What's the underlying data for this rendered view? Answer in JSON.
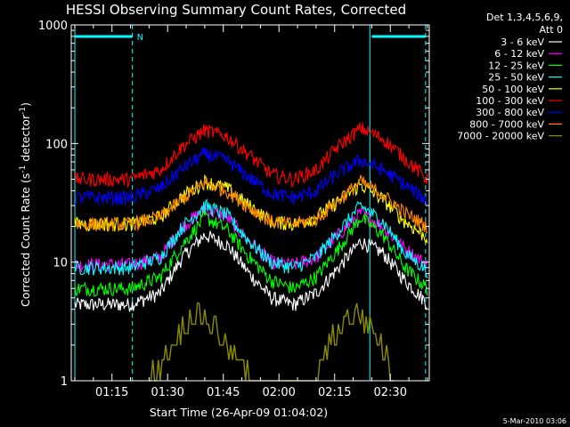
{
  "chart_data": {
    "type": "line",
    "title": "HESSI Observing Summary Count Rates, Corrected",
    "xlabel": "Start Time (26-Apr-09 01:04:02)",
    "ylabel": "Corrected Count Rate (s",
    "ylabel_sup1": "-1",
    "ylabel_mid": " detector",
    "ylabel_sup2": "-1",
    "ylabel_end": ")",
    "y_scale": "log",
    "ylim": [
      1,
      1000
    ],
    "xlim": [
      "01:04:02",
      "02:40:30"
    ],
    "x_tick_labels": [
      "01:15",
      "01:30",
      "01:45",
      "02:00",
      "02:15",
      "02:30"
    ],
    "x_tick_minutes": [
      75,
      90,
      105,
      120,
      135,
      150
    ],
    "x_range_minutes": [
      64.03,
      160.5
    ],
    "y_tick_labels": [
      "1",
      "10",
      "100",
      "1000"
    ],
    "y_tick_values": [
      1,
      10,
      100,
      1000
    ],
    "legend_header": [
      "Det 1,3,4,5,6,9,",
      "Att 0"
    ],
    "legend_placement": "right",
    "night_marker_label": "N",
    "timestamp": "5-Mar-2010 03:06",
    "orbit_markers_minutes": [
      65,
      80.5,
      144.5,
      159.5
    ],
    "night_intervals_minutes": [
      [
        65,
        80.5
      ],
      [
        145,
        159.5
      ]
    ],
    "series": [
      {
        "name": "3 - 6 keV",
        "color": "#ffffff",
        "x": [
          65,
          80,
          88,
          94,
          100,
          106,
          112,
          118,
          124,
          130,
          136,
          142,
          148,
          154,
          160
        ],
        "y": [
          4.4,
          4.4,
          5.5,
          11,
          17,
          14,
          8,
          5,
          4.4,
          5.5,
          9,
          15,
          12,
          7,
          4.5
        ]
      },
      {
        "name": "6 - 12 keV",
        "color": "#ff00ff",
        "x": [
          65,
          80,
          88,
          94,
          100,
          106,
          112,
          118,
          124,
          130,
          136,
          142,
          148,
          154,
          160
        ],
        "y": [
          9.5,
          9.5,
          11,
          20,
          28,
          24,
          15,
          10,
          9.5,
          11,
          17,
          26,
          20,
          13,
          9.5
        ]
      },
      {
        "name": "12 - 25 keV",
        "color": "#00ff00",
        "x": [
          65,
          80,
          88,
          94,
          100,
          106,
          112,
          118,
          124,
          130,
          136,
          142,
          148,
          154,
          160
        ],
        "y": [
          6,
          6,
          7.5,
          14,
          24,
          19,
          11,
          7,
          6,
          7.5,
          13,
          24,
          17,
          9,
          6
        ]
      },
      {
        "name": "25 - 50 keV",
        "color": "#00ffff",
        "x": [
          65,
          80,
          88,
          94,
          100,
          106,
          112,
          118,
          124,
          130,
          136,
          142,
          148,
          154,
          160
        ],
        "y": [
          9,
          9,
          11,
          20,
          30,
          25,
          15,
          10,
          9,
          11,
          18,
          30,
          22,
          12,
          8.5
        ]
      },
      {
        "name": "50 - 100 keV",
        "color": "#ffff00",
        "x": [
          65,
          80,
          88,
          94,
          100,
          106,
          112,
          118,
          124,
          130,
          136,
          142,
          148,
          154,
          160
        ],
        "y": [
          21,
          21,
          24,
          36,
          48,
          42,
          30,
          22,
          21,
          24,
          33,
          45,
          34,
          22,
          16
        ]
      },
      {
        "name": "100 - 300 keV",
        "color": "#ff0000",
        "x": [
          65,
          80,
          88,
          94,
          100,
          106,
          112,
          118,
          124,
          130,
          136,
          142,
          148,
          154,
          160
        ],
        "y": [
          50,
          50,
          60,
          95,
          130,
          115,
          80,
          55,
          50,
          60,
          95,
          135,
          110,
          75,
          50
        ]
      },
      {
        "name": "300 - 800 keV",
        "color": "#0000ff",
        "x": [
          65,
          80,
          88,
          94,
          100,
          106,
          112,
          118,
          124,
          130,
          136,
          142,
          148,
          154,
          160
        ],
        "y": [
          35,
          35,
          42,
          62,
          82,
          72,
          52,
          38,
          35,
          40,
          57,
          73,
          60,
          45,
          33
        ]
      },
      {
        "name": "800 - 7000 keV",
        "color": "#ff8800",
        "x": [
          65,
          80,
          88,
          94,
          100,
          106,
          112,
          118,
          124,
          130,
          136,
          142,
          148,
          154,
          160
        ],
        "y": [
          21,
          21,
          24,
          34,
          47,
          40,
          29,
          22,
          21,
          23,
          33,
          48,
          37,
          26,
          20
        ]
      },
      {
        "name": "7000 - 20000 keV",
        "color": "#8b8b00",
        "x": [
          85,
          88,
          91,
          94,
          97,
          100,
          103,
          106,
          109,
          112,
          130,
          133,
          136,
          139,
          142,
          145,
          148,
          151
        ],
        "y": [
          1,
          1.5,
          2,
          3,
          3.8,
          3.8,
          3,
          2,
          1.5,
          1,
          1,
          2,
          3,
          3.8,
          3.8,
          3,
          2,
          1
        ]
      }
    ]
  }
}
